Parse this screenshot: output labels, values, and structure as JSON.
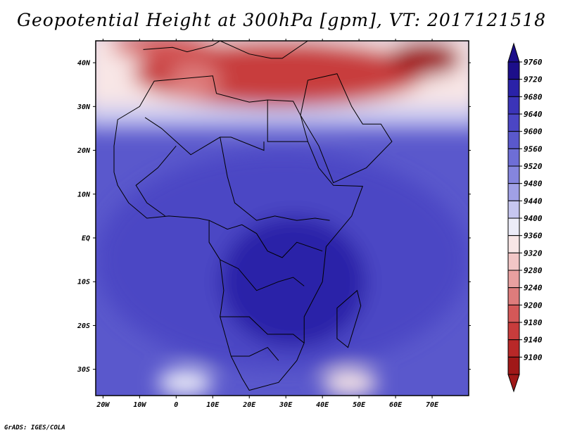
{
  "chart_data": {
    "type": "heatmap",
    "title": "Geopotential Height at 300hPa [gpm], VT: 2017121518",
    "variable": "Geopotential Height",
    "level": "300hPa",
    "units": "gpm",
    "valid_time": "2017121518",
    "xlim": [
      -22,
      80
    ],
    "ylim": [
      -36,
      45
    ],
    "x_ticks": [
      {
        "value": -20,
        "label": "20W"
      },
      {
        "value": -10,
        "label": "10W"
      },
      {
        "value": 0,
        "label": "0"
      },
      {
        "value": 10,
        "label": "10E"
      },
      {
        "value": 20,
        "label": "20E"
      },
      {
        "value": 30,
        "label": "30E"
      },
      {
        "value": 40,
        "label": "40E"
      },
      {
        "value": 50,
        "label": "50E"
      },
      {
        "value": 60,
        "label": "60E"
      },
      {
        "value": 70,
        "label": "70E"
      }
    ],
    "y_ticks": [
      {
        "value": 40,
        "label": "40N"
      },
      {
        "value": 30,
        "label": "30N"
      },
      {
        "value": 20,
        "label": "20N"
      },
      {
        "value": 10,
        "label": "10N"
      },
      {
        "value": 0,
        "label": "EQ"
      },
      {
        "value": -10,
        "label": "10S"
      },
      {
        "value": -20,
        "label": "20S"
      },
      {
        "value": -30,
        "label": "30S"
      }
    ],
    "colorbar": {
      "levels": [
        9760,
        9720,
        9680,
        9640,
        9600,
        9560,
        9520,
        9480,
        9440,
        9400,
        9360,
        9320,
        9280,
        9240,
        9200,
        9180,
        9140,
        9100
      ],
      "colors": [
        "#1c0e8a",
        "#2a22a8",
        "#3b34b8",
        "#4b46c4",
        "#5a58cc",
        "#6e6ed6",
        "#8585de",
        "#a0a0e6",
        "#c6c6f0",
        "#ececf8",
        "#f8e6e6",
        "#f2c6c6",
        "#e8a0a0",
        "#de7c7c",
        "#d45858",
        "#c83c3c",
        "#b82828",
        "#a01818"
      ]
    },
    "fields": [
      {
        "name": "mediterranean-high",
        "lon_range": [
          -12,
          68
        ],
        "lat_range": [
          30,
          45
        ],
        "value": 9180
      },
      {
        "name": "tropical-band",
        "lon_range": [
          -22,
          80
        ],
        "lat_range": [
          -30,
          20
        ],
        "value": 9640
      },
      {
        "name": "central-africa-core",
        "lon_range": [
          12,
          52
        ],
        "lat_range": [
          -25,
          5
        ],
        "value": 9720
      },
      {
        "name": "southern-low-west",
        "lon_range": [
          -5,
          10
        ],
        "lat_range": [
          -36,
          -30
        ],
        "value": 9400
      },
      {
        "name": "southern-low-east",
        "lon_range": [
          40,
          55
        ],
        "lat_range": [
          -36,
          -30
        ],
        "value": 9360
      }
    ]
  },
  "credit": "GrADS: IGES/COLA"
}
